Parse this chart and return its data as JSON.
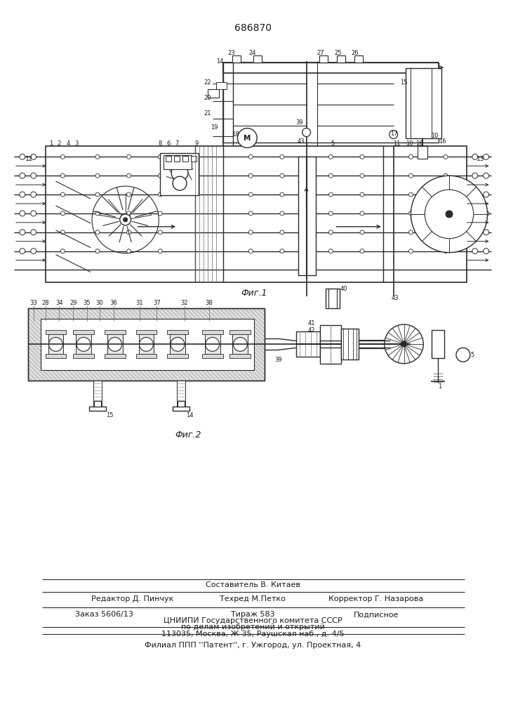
{
  "patent_number": "686870",
  "fig1_caption": "Фиг.1",
  "fig2_caption": "Фиг.2",
  "footer_line1": "Составитель В. Китаев",
  "footer_line2_left": "Редактор Д. Пинчук",
  "footer_line2_mid": "Техред М.Петко",
  "footer_line2_right": "Корректор Г. Назарова",
  "footer_line3_left": "Заказ 5606/13",
  "footer_line3_mid": "Тираж 583",
  "footer_line3_right": "Подписное",
  "footer_line4": "ЦНИИПИ Государственного комитета СССР",
  "footer_line5": "по делам изобретений и открытий",
  "footer_line6": "113035, Москва, Ж-35, Раушская наб., д. 4/5",
  "footer_line7": "Филиал ППП ''Патент'', г. Ужгород, ул. Проектная, 4",
  "bg_color": "#ffffff",
  "line_color": "#2a2a2a",
  "text_color": "#1a1a1a"
}
